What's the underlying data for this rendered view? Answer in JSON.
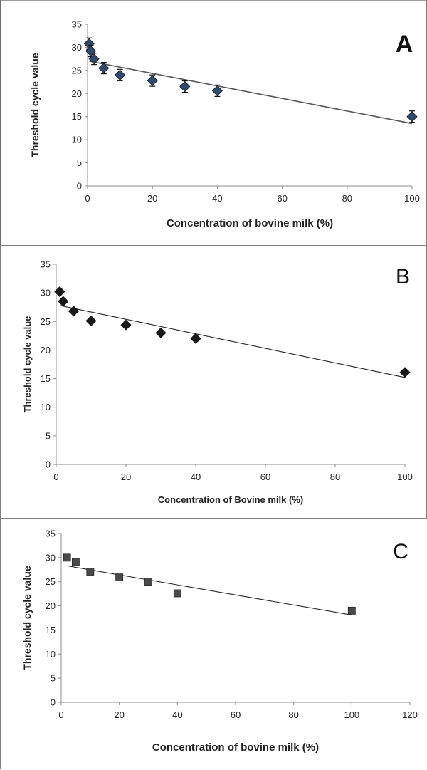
{
  "chart_data": [
    {
      "type": "scatter",
      "panel_label": "A",
      "xlabel": "Concentration of bovine milk (%)",
      "ylabel": "Threshold cycle value",
      "xlim": [
        0,
        100
      ],
      "ylim": [
        0,
        35
      ],
      "xticks": [
        "0",
        "20",
        "40",
        "60",
        "80",
        "100"
      ],
      "yticks": [
        "0",
        "5",
        "10",
        "15",
        "20",
        "25",
        "30",
        "35"
      ],
      "marker": "diamond",
      "marker_color": "#2e4a6e",
      "error_bars": true,
      "points": [
        {
          "x": 0.5,
          "y": 30.8
        },
        {
          "x": 1,
          "y": 29.2
        },
        {
          "x": 2,
          "y": 27.5
        },
        {
          "x": 5,
          "y": 25.5
        },
        {
          "x": 10,
          "y": 24.0
        },
        {
          "x": 20,
          "y": 22.8
        },
        {
          "x": 30,
          "y": 21.5
        },
        {
          "x": 40,
          "y": 20.6
        },
        {
          "x": 100,
          "y": 15.0
        }
      ],
      "trendline": {
        "x": [
          0.5,
          100
        ],
        "y": [
          27.0,
          13.5
        ]
      }
    },
    {
      "type": "scatter",
      "panel_label": "B",
      "xlabel": "Concentration of Bovine milk (%)",
      "ylabel": "Threshold cycle value",
      "xlim": [
        0,
        100
      ],
      "ylim": [
        0,
        35
      ],
      "xticks": [
        "0",
        "20",
        "40",
        "60",
        "80",
        "100"
      ],
      "yticks": [
        "0",
        "5",
        "10",
        "15",
        "20",
        "25",
        "30",
        "35"
      ],
      "marker": "diamond",
      "marker_color": "#1a1a1a",
      "error_bars": false,
      "points": [
        {
          "x": 1,
          "y": 30.2
        },
        {
          "x": 2,
          "y": 28.5
        },
        {
          "x": 5,
          "y": 26.8
        },
        {
          "x": 10,
          "y": 25.1
        },
        {
          "x": 20,
          "y": 24.4
        },
        {
          "x": 30,
          "y": 23.0
        },
        {
          "x": 40,
          "y": 22.0
        },
        {
          "x": 100,
          "y": 16.1
        }
      ],
      "trendline": {
        "x": [
          1,
          100
        ],
        "y": [
          27.8,
          15.2
        ]
      }
    },
    {
      "type": "scatter",
      "panel_label": "C",
      "xlabel": "Concentration of bovine milk (%)",
      "ylabel": "Threshold cycle value",
      "xlim": [
        0,
        120
      ],
      "ylim": [
        0,
        35
      ],
      "xticks": [
        "0",
        "20",
        "40",
        "60",
        "80",
        "100",
        "120"
      ],
      "yticks": [
        "0",
        "5",
        "10",
        "15",
        "20",
        "25",
        "30",
        "35"
      ],
      "marker": "square",
      "marker_color": "#4a4a4a",
      "error_bars": false,
      "points": [
        {
          "x": 2,
          "y": 30.0
        },
        {
          "x": 5,
          "y": 29.1
        },
        {
          "x": 10,
          "y": 27.1
        },
        {
          "x": 20,
          "y": 25.9
        },
        {
          "x": 30,
          "y": 25.0
        },
        {
          "x": 40,
          "y": 22.6
        },
        {
          "x": 100,
          "y": 19.0
        }
      ],
      "trendline": {
        "x": [
          2,
          100
        ],
        "y": [
          28.3,
          18.1
        ]
      }
    }
  ]
}
